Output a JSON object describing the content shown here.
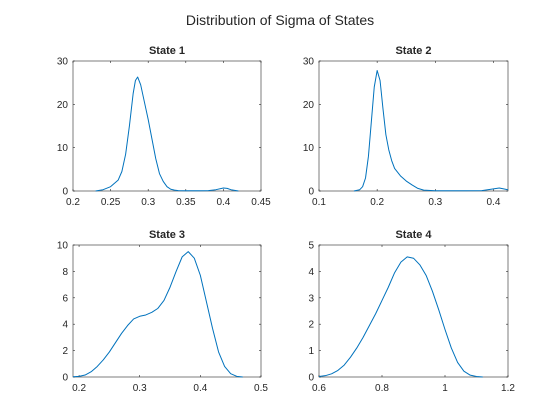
{
  "figure": {
    "title": "Distribution of Sigma of States",
    "line_color": "#0072BD",
    "axis_color": "#262626"
  },
  "chart_data": [
    {
      "type": "line",
      "title": "State 1",
      "xlabel": "",
      "ylabel": "",
      "xlim": [
        0.2,
        0.45
      ],
      "ylim": [
        0,
        30
      ],
      "xticks": [
        0.2,
        0.25,
        0.3,
        0.35,
        0.4,
        0.45
      ],
      "xticklabels": [
        "0.2",
        "0.25",
        "0.3",
        "0.35",
        "0.4",
        "0.45"
      ],
      "yticks": [
        0,
        10,
        20,
        30
      ],
      "yticklabels": [
        "0",
        "10",
        "20",
        "30"
      ],
      "grid": false,
      "legend": false,
      "series": [
        {
          "x": [
            0.23,
            0.24,
            0.25,
            0.26,
            0.265,
            0.27,
            0.275,
            0.28,
            0.283,
            0.286,
            0.29,
            0.295,
            0.3,
            0.305,
            0.31,
            0.315,
            0.32,
            0.325,
            0.33,
            0.335,
            0.34,
            0.35,
            0.36,
            0.37,
            0.38,
            0.39,
            0.4,
            0.405,
            0.41,
            0.42
          ],
          "y": [
            0,
            0.3,
            1.0,
            2.5,
            4.5,
            8.5,
            15.0,
            22.5,
            25.5,
            26.3,
            24.5,
            20.5,
            16.5,
            12.0,
            7.5,
            4.0,
            2.2,
            1.0,
            0.4,
            0.2,
            0.1,
            0.05,
            0.05,
            0.05,
            0.1,
            0.3,
            0.7,
            0.6,
            0.3,
            0
          ]
        }
      ]
    },
    {
      "type": "line",
      "title": "State 2",
      "xlabel": "",
      "ylabel": "",
      "xlim": [
        0.1,
        0.425
      ],
      "ylim": [
        0,
        30
      ],
      "xticks": [
        0.1,
        0.2,
        0.3,
        0.4
      ],
      "xticklabels": [
        "0.1",
        "0.2",
        "0.3",
        "0.4"
      ],
      "yticks": [
        0,
        10,
        20,
        30
      ],
      "yticklabels": [
        "0",
        "10",
        "20",
        "30"
      ],
      "grid": false,
      "legend": false,
      "series": [
        {
          "x": [
            0.16,
            0.17,
            0.175,
            0.18,
            0.185,
            0.19,
            0.195,
            0.2,
            0.205,
            0.21,
            0.215,
            0.22,
            0.225,
            0.23,
            0.24,
            0.25,
            0.26,
            0.27,
            0.28,
            0.3,
            0.35,
            0.38,
            0.4,
            0.41,
            0.425
          ],
          "y": [
            0,
            0.3,
            1.0,
            3.0,
            8.0,
            16.0,
            24.0,
            27.8,
            25.5,
            19.0,
            13.0,
            9.5,
            7.0,
            5.2,
            3.5,
            2.3,
            1.4,
            0.6,
            0.2,
            0.05,
            0.05,
            0.1,
            0.5,
            0.7,
            0.3
          ]
        }
      ]
    },
    {
      "type": "line",
      "title": "State 3",
      "xlabel": "",
      "ylabel": "",
      "xlim": [
        0.19,
        0.5
      ],
      "ylim": [
        0,
        10
      ],
      "xticks": [
        0.2,
        0.3,
        0.4,
        0.5
      ],
      "xticklabels": [
        "0.2",
        "0.3",
        "0.4",
        "0.5"
      ],
      "yticks": [
        0,
        2,
        4,
        6,
        8,
        10
      ],
      "yticklabels": [
        "0",
        "2",
        "4",
        "6",
        "8",
        "10"
      ],
      "grid": false,
      "legend": false,
      "series": [
        {
          "x": [
            0.19,
            0.2,
            0.21,
            0.22,
            0.23,
            0.24,
            0.25,
            0.26,
            0.27,
            0.28,
            0.29,
            0.3,
            0.31,
            0.32,
            0.33,
            0.34,
            0.35,
            0.36,
            0.37,
            0.38,
            0.39,
            0.4,
            0.41,
            0.42,
            0.43,
            0.44,
            0.45,
            0.46,
            0.47
          ],
          "y": [
            0.02,
            0.05,
            0.15,
            0.4,
            0.8,
            1.3,
            1.9,
            2.6,
            3.3,
            3.9,
            4.4,
            4.6,
            4.7,
            4.9,
            5.2,
            5.8,
            6.8,
            8.0,
            9.1,
            9.5,
            9.0,
            7.7,
            5.7,
            3.7,
            1.9,
            0.8,
            0.25,
            0.05,
            0.0
          ]
        }
      ]
    },
    {
      "type": "line",
      "title": "State 4",
      "xlabel": "",
      "ylabel": "",
      "xlim": [
        0.6,
        1.2
      ],
      "ylim": [
        0,
        5
      ],
      "xticks": [
        0.6,
        0.8,
        1.0,
        1.2
      ],
      "xticklabels": [
        "0.6",
        "0.8",
        "1",
        "1.2"
      ],
      "yticks": [
        0,
        1,
        2,
        3,
        4,
        5
      ],
      "yticklabels": [
        "0",
        "1",
        "2",
        "3",
        "4",
        "5"
      ],
      "grid": false,
      "legend": false,
      "series": [
        {
          "x": [
            0.6,
            0.62,
            0.64,
            0.66,
            0.68,
            0.7,
            0.72,
            0.74,
            0.76,
            0.78,
            0.8,
            0.82,
            0.84,
            0.86,
            0.88,
            0.9,
            0.92,
            0.94,
            0.96,
            0.98,
            1.0,
            1.02,
            1.04,
            1.06,
            1.08,
            1.1,
            1.12
          ],
          "y": [
            0.02,
            0.05,
            0.12,
            0.25,
            0.45,
            0.75,
            1.1,
            1.5,
            1.95,
            2.4,
            2.9,
            3.4,
            3.95,
            4.35,
            4.55,
            4.5,
            4.25,
            3.85,
            3.25,
            2.55,
            1.8,
            1.1,
            0.55,
            0.22,
            0.07,
            0.02,
            0.0
          ]
        }
      ]
    }
  ]
}
